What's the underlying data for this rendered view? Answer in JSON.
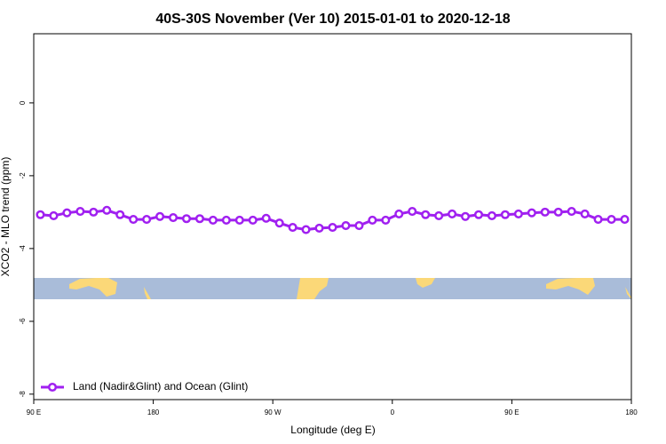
{
  "chart_data": {
    "type": "line",
    "title": "40S-30S November (Ver 10)   2015-01-01 to 2020-12-18",
    "x_label": "Longitude (deg E)",
    "y_label": "XCO2 - MLO trend (ppm)",
    "xlim": [
      90,
      540
    ],
    "ylim": [
      -8.15,
      1.9
    ],
    "xticks": [
      {
        "value": 90,
        "label": "90 E"
      },
      {
        "value": 180,
        "label": "180"
      },
      {
        "value": 270,
        "label": "90 W"
      },
      {
        "value": 360,
        "label": "0"
      },
      {
        "value": 450,
        "label": "90 E"
      },
      {
        "value": 540,
        "label": "180"
      }
    ],
    "yticks": [
      0,
      -2,
      -4,
      -6,
      -8
    ],
    "legend_position": "bottom left",
    "x": [
      95,
      105,
      115,
      125,
      135,
      145,
      155,
      165,
      175,
      185,
      195,
      205,
      215,
      225,
      235,
      245,
      255,
      265,
      275,
      285,
      295,
      305,
      315,
      325,
      335,
      345,
      355,
      365,
      375,
      385,
      395,
      405,
      415,
      425,
      435,
      445,
      455,
      465,
      475,
      485,
      495,
      505,
      515,
      525,
      535
    ],
    "series": [
      {
        "name": "Land (Nadir&Glint) and Ocean (Glint)",
        "color": "#a020f0",
        "values": [
          -3.07,
          -3.1,
          -3.02,
          -2.98,
          -3.0,
          -2.95,
          -3.07,
          -3.2,
          -3.2,
          -3.12,
          -3.15,
          -3.18,
          -3.18,
          -3.22,
          -3.22,
          -3.22,
          -3.22,
          -3.17,
          -3.3,
          -3.42,
          -3.48,
          -3.44,
          -3.42,
          -3.37,
          -3.37,
          -3.22,
          -3.22,
          -3.05,
          -2.98,
          -3.07,
          -3.1,
          -3.05,
          -3.12,
          -3.07,
          -3.1,
          -3.07,
          -3.05,
          -3.02,
          -3.0,
          -3.0,
          -2.98,
          -3.05,
          -3.2,
          -3.2,
          -3.2
        ]
      }
    ]
  }
}
